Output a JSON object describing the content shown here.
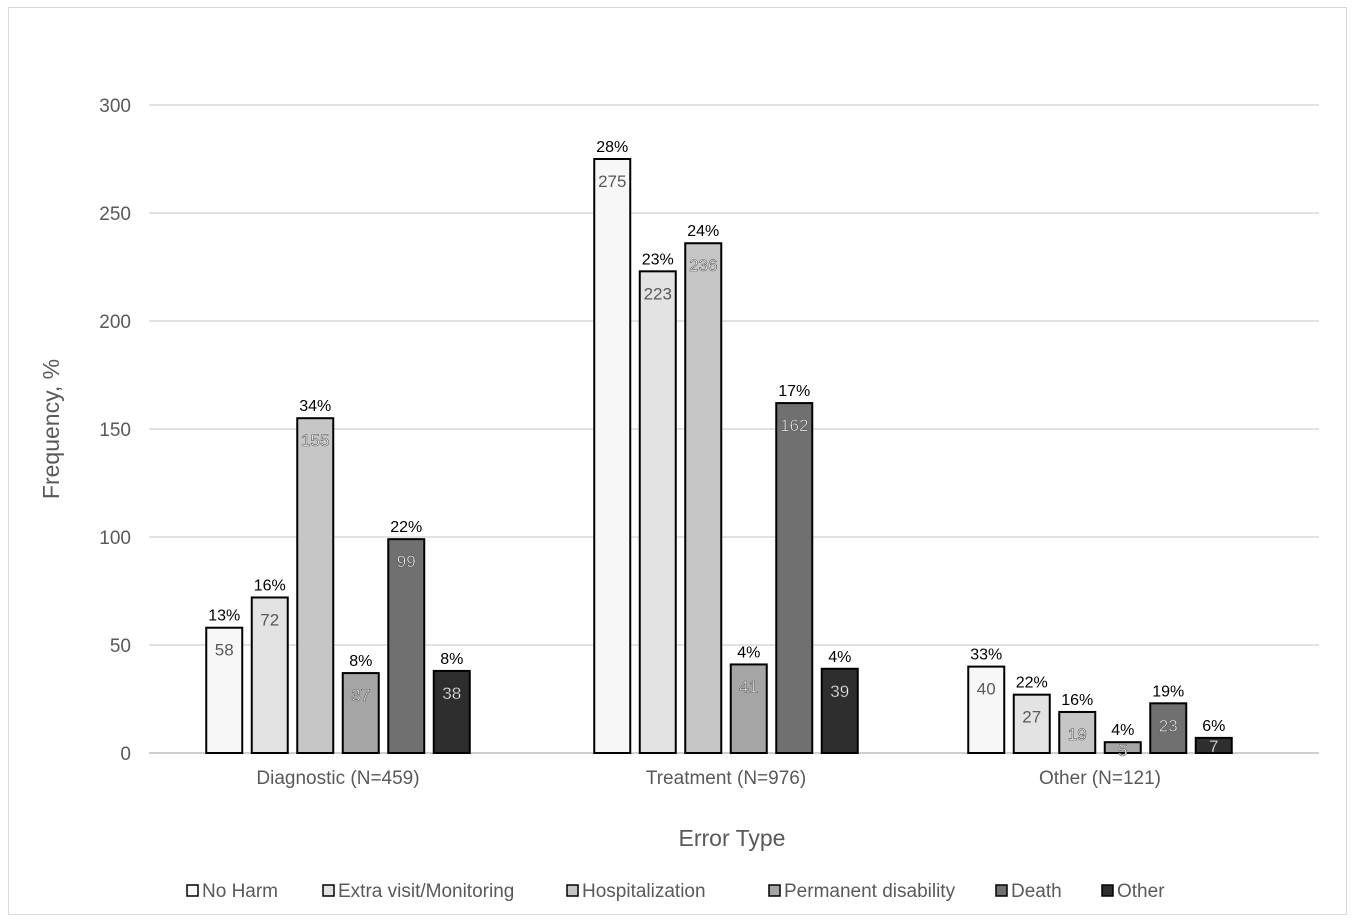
{
  "chart_data": {
    "type": "bar",
    "xlabel": "Error Type",
    "ylabel": "Frequency, %",
    "ylim": [
      0,
      300
    ],
    "yticks": [
      0,
      50,
      100,
      150,
      200,
      250,
      300
    ],
    "grid": true,
    "legend_position": "bottom",
    "categories": [
      "Diagnostic (N=459)",
      "Treatment (N=976)",
      "Other (N=121)"
    ],
    "series": [
      {
        "name": "No Harm",
        "color": "#f7f7f7",
        "label_color": "#595959",
        "values": [
          58,
          275,
          40
        ],
        "percent_labels": [
          "13%",
          "28%",
          "33%"
        ]
      },
      {
        "name": "Extra visit/Monitoring",
        "color": "#e3e3e3",
        "label_color": "#595959",
        "values": [
          72,
          223,
          27
        ],
        "percent_labels": [
          "16%",
          "23%",
          "22%"
        ]
      },
      {
        "name": "Hospitalization",
        "color": "#c6c6c6",
        "label_color": "#ffffff",
        "values": [
          155,
          236,
          19
        ],
        "percent_labels": [
          "34%",
          "24%",
          "16%"
        ]
      },
      {
        "name": "Permanent disability",
        "color": "#a5a5a5",
        "label_color": "#ffffff",
        "values": [
          37,
          41,
          5
        ],
        "percent_labels": [
          "8%",
          "4%",
          "4%"
        ]
      },
      {
        "name": "Death",
        "color": "#707070",
        "label_color": "#ffffff",
        "values": [
          99,
          162,
          23
        ],
        "percent_labels": [
          "22%",
          "17%",
          "19%"
        ]
      },
      {
        "name": "Other",
        "color": "#2e2e2e",
        "label_color": "#ffffff",
        "values": [
          38,
          39,
          7
        ],
        "percent_labels": [
          "8%",
          "4%",
          "6%"
        ]
      }
    ]
  }
}
